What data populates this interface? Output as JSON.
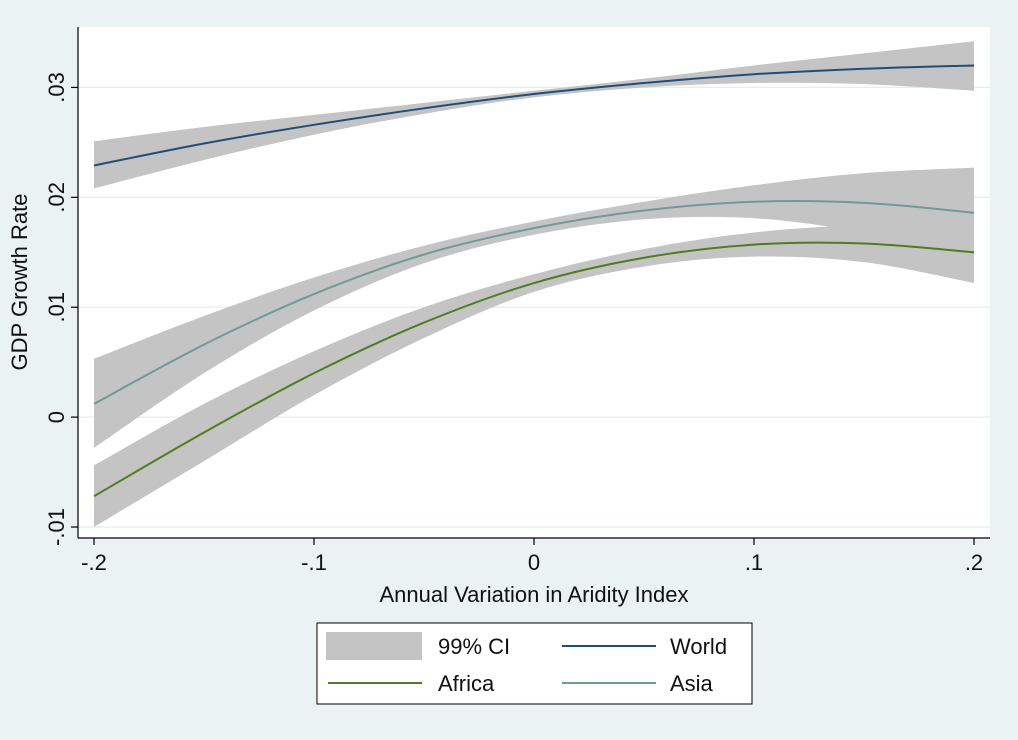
{
  "chart_data": {
    "type": "area",
    "title": "",
    "xlabel": "Annual Variation in Aridity Index",
    "ylabel": "GDP Growth Rate",
    "xlim": [
      -0.2,
      0.2
    ],
    "ylim": [
      -0.011,
      0.0355
    ],
    "x_ticks": [
      {
        "value": -0.2,
        "label": "-.2"
      },
      {
        "value": -0.1,
        "label": "-.1"
      },
      {
        "value": 0,
        "label": "0"
      },
      {
        "value": 0.1,
        "label": ".1"
      },
      {
        "value": 0.2,
        "label": ".2"
      }
    ],
    "y_ticks": [
      {
        "value": -0.01,
        "label": "-.01"
      },
      {
        "value": 0,
        "label": "0"
      },
      {
        "value": 0.01,
        "label": ".01"
      },
      {
        "value": 0.02,
        "label": ".02"
      },
      {
        "value": 0.03,
        "label": ".03"
      }
    ],
    "grid": "horizontal",
    "ci_label": "99% CI",
    "ci_color": "#c4c4c4",
    "legend_position": "bottom",
    "x": [
      -0.2,
      -0.15,
      -0.1,
      -0.05,
      0,
      0.05,
      0.1,
      0.15,
      0.2
    ],
    "series": [
      {
        "name": "World",
        "color": "#1f4e79",
        "values": [
          0.0229,
          0.0249,
          0.0266,
          0.0281,
          0.0294,
          0.0304,
          0.0312,
          0.0317,
          0.032
        ],
        "lower": [
          0.0208,
          0.0234,
          0.0257,
          0.0276,
          0.0291,
          0.03,
          0.0304,
          0.0303,
          0.0297
        ],
        "upper": [
          0.0251,
          0.0264,
          0.0275,
          0.0286,
          0.0297,
          0.0308,
          0.032,
          0.0331,
          0.0342
        ]
      },
      {
        "name": "Asia",
        "color": "#6f9a95",
        "values": [
          0.0012,
          0.0066,
          0.0112,
          0.0148,
          0.0172,
          0.0188,
          0.0196,
          0.0195,
          0.0186
        ],
        "lower": [
          -0.0028,
          0.004,
          0.0097,
          0.014,
          0.0166,
          0.018,
          0.0181,
          0.0168,
          0.0145
        ],
        "upper": [
          0.0053,
          0.0092,
          0.0127,
          0.0156,
          0.0178,
          0.0196,
          0.0211,
          0.0222,
          0.0227
        ]
      },
      {
        "name": "Africa",
        "color": "#4f7d1f",
        "values": [
          -0.0072,
          -0.0014,
          0.004,
          0.0086,
          0.0122,
          0.0145,
          0.0157,
          0.0158,
          0.015
        ],
        "lower": [
          -0.01,
          -0.004,
          0.002,
          0.0072,
          0.0114,
          0.0137,
          0.0146,
          0.0141,
          0.0122
        ],
        "upper": [
          -0.0044,
          0.0012,
          0.006,
          0.01,
          0.013,
          0.0153,
          0.0168,
          0.0175,
          0.0178
        ]
      }
    ],
    "legend": [
      {
        "label": "99% CI",
        "kind": "band"
      },
      {
        "label": "World",
        "kind": "line",
        "series": "World"
      },
      {
        "label": "Africa",
        "kind": "line",
        "series": "Africa"
      },
      {
        "label": "Asia",
        "kind": "line",
        "series": "Asia"
      }
    ]
  }
}
